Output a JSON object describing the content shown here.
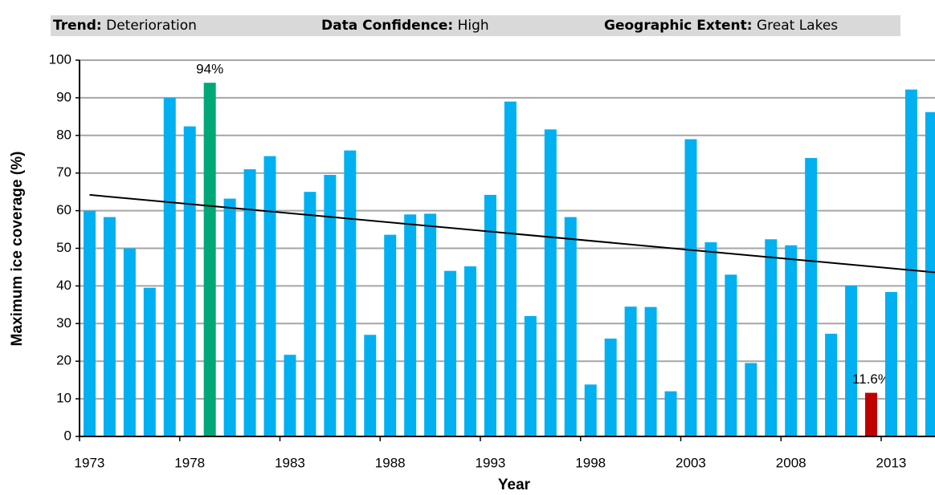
{
  "header": [
    {
      "label": "Trend:",
      "value": "Deterioration"
    },
    {
      "label": "Data Confidence:",
      "value": "High"
    },
    {
      "label": "Geographic Extent:",
      "value": "Great Lakes"
    }
  ],
  "chart_data": {
    "type": "bar",
    "x_label": "Year",
    "y_label": "Maximum ice coverage (%)",
    "categories": [
      1973,
      null,
      null,
      null,
      null,
      1978,
      null,
      null,
      null,
      null,
      1983,
      null,
      null,
      null,
      null,
      1988,
      null,
      null,
      null,
      null,
      1993,
      null,
      null,
      null,
      null,
      1998,
      null,
      null,
      null,
      null,
      2003,
      null,
      null,
      null,
      null,
      2008,
      null,
      null,
      null,
      null,
      2013,
      null,
      null
    ],
    "values": [
      60,
      58.3,
      50,
      39.5,
      90,
      82.4,
      94,
      63.2,
      71,
      74.5,
      21.7,
      65,
      69.5,
      76,
      27,
      53.6,
      59,
      59.2,
      44,
      45.2,
      64.2,
      89,
      32,
      81.6,
      58.3,
      13.8,
      26,
      34.5,
      34.4,
      12,
      79,
      51.6,
      43,
      19.5,
      52.4,
      50.8,
      74,
      27.3,
      40.1,
      11.6,
      38.4,
      92.2,
      86.2
    ],
    "value_labels": [
      null,
      null,
      null,
      null,
      null,
      null,
      "94%",
      null,
      null,
      null,
      null,
      null,
      null,
      null,
      null,
      null,
      null,
      null,
      null,
      null,
      null,
      null,
      null,
      null,
      null,
      null,
      null,
      null,
      null,
      null,
      null,
      null,
      null,
      null,
      null,
      null,
      null,
      null,
      null,
      "11.6%",
      null,
      null,
      null
    ],
    "color": "#00b0f0",
    "highlight_colors": [
      null,
      null,
      null,
      null,
      null,
      null,
      "#00a878",
      null,
      null,
      null,
      null,
      null,
      null,
      null,
      null,
      null,
      null,
      null,
      null,
      null,
      null,
      null,
      null,
      null,
      null,
      null,
      null,
      null,
      null,
      null,
      null,
      null,
      null,
      null,
      null,
      null,
      null,
      null,
      null,
      "#c00000",
      null,
      null,
      null
    ],
    "trendline": {
      "start": 64.2,
      "end": 43.6,
      "color": "#000000"
    },
    "ylim": [
      0,
      100
    ],
    "yticks": [
      0,
      10,
      20,
      30,
      40,
      50,
      60,
      70,
      80,
      90,
      100
    ],
    "grid": true
  }
}
